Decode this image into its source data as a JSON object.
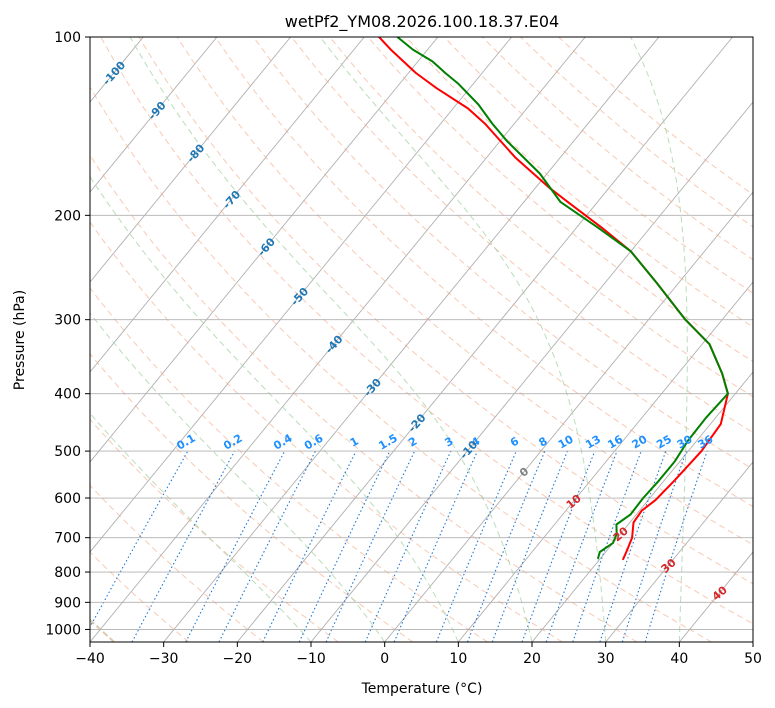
{
  "chart_data": {
    "type": "skew-t",
    "title": "wetPf2_YM08.2026.100.18.37.E04",
    "xlabel": "Temperature (°C)",
    "ylabel": "Pressure (hPa)",
    "xlim": [
      -40,
      50
    ],
    "ylim": [
      1050,
      100
    ],
    "x_ticks": [
      -40,
      -30,
      -20,
      -10,
      0,
      10,
      20,
      30,
      40,
      50
    ],
    "x_tick_labels": [
      "−40",
      "−30",
      "−20",
      "−10",
      "0",
      "10",
      "20",
      "30",
      "40",
      "50"
    ],
    "y_ticks": [
      100,
      200,
      300,
      400,
      500,
      600,
      700,
      800,
      900,
      1000
    ],
    "y_tick_labels": [
      "100",
      "200",
      "300",
      "400",
      "500",
      "600",
      "700",
      "800",
      "900",
      "1000"
    ],
    "grid": true,
    "series": [
      {
        "name": "temperature",
        "color": "#ff0000",
        "points": [
          [
            763,
            23.2
          ],
          [
            740,
            22.8
          ],
          [
            700,
            22.0
          ],
          [
            660,
            20.5
          ],
          [
            630,
            20.3
          ],
          [
            605,
            21.0
          ],
          [
            560,
            21.4
          ],
          [
            500,
            21.8
          ],
          [
            450,
            21.4
          ],
          [
            400,
            19.0
          ],
          [
            370,
            16.0
          ],
          [
            330,
            11.0
          ],
          [
            300,
            5.0
          ],
          [
            260,
            -3.0
          ],
          [
            230,
            -10.0
          ],
          [
            210,
            -16.5
          ],
          [
            190,
            -24.0
          ],
          [
            180,
            -28.0
          ],
          [
            160,
            -36.0
          ],
          [
            140,
            -44.0
          ],
          [
            132,
            -48.0
          ],
          [
            122,
            -54.5
          ],
          [
            115,
            -59.0
          ],
          [
            105,
            -65.0
          ],
          [
            100,
            -68.0
          ]
        ]
      },
      {
        "name": "dewpoint",
        "color": "#008000",
        "points": [
          [
            760,
            19.7
          ],
          [
            740,
            19.2
          ],
          [
            715,
            20.0
          ],
          [
            690,
            19.5
          ],
          [
            665,
            18.4
          ],
          [
            640,
            19.2
          ],
          [
            600,
            19.1
          ],
          [
            560,
            19.3
          ],
          [
            520,
            19.3
          ],
          [
            480,
            18.8
          ],
          [
            440,
            18.7
          ],
          [
            400,
            19.0
          ],
          [
            370,
            16.0
          ],
          [
            330,
            11.0
          ],
          [
            300,
            5.0
          ],
          [
            260,
            -3.0
          ],
          [
            230,
            -10.0
          ],
          [
            210,
            -17.0
          ],
          [
            190,
            -25.0
          ],
          [
            170,
            -31.0
          ],
          [
            150,
            -39.0
          ],
          [
            140,
            -43.0
          ],
          [
            130,
            -47.0
          ],
          [
            120,
            -52.0
          ],
          [
            115,
            -55.0
          ],
          [
            110,
            -58.0
          ],
          [
            105,
            -62.0
          ],
          [
            100,
            -65.5
          ]
        ]
      }
    ],
    "dry_adiabat_temps_c": [
      -30,
      -20,
      -10,
      0,
      10,
      20,
      30,
      40,
      50,
      60,
      70,
      80,
      90,
      100,
      110,
      120,
      130,
      140,
      150,
      160,
      170
    ],
    "moist_adiabat_temps_c": [
      -10,
      0,
      10,
      20,
      30,
      40
    ],
    "mixing_ratio_labels": [
      "0.1",
      "0.2",
      "0.4",
      "0.6",
      "1",
      "1.5",
      "2",
      "3",
      "4",
      "6",
      "8",
      "10",
      "13",
      "16",
      "20",
      "25",
      "30",
      "36"
    ],
    "mixing_ratio_values": [
      0.1,
      0.2,
      0.4,
      0.6,
      1,
      1.5,
      2,
      3,
      4,
      6,
      8,
      10,
      13,
      16,
      20,
      25,
      30,
      36
    ],
    "isotherm_labels": [
      {
        "text": "-100",
        "value": -100,
        "p": 115
      },
      {
        "text": "-90",
        "value": -90,
        "p": 133
      },
      {
        "text": "-80",
        "value": -80,
        "p": 157
      },
      {
        "text": "-70",
        "value": -70,
        "p": 188
      },
      {
        "text": "-60",
        "value": -60,
        "p": 226
      },
      {
        "text": "-50",
        "value": -50,
        "p": 274
      },
      {
        "text": "-40",
        "value": -40,
        "p": 330
      },
      {
        "text": "-30",
        "value": -30,
        "p": 390
      },
      {
        "text": "-20",
        "value": -20,
        "p": 448
      },
      {
        "text": "-10",
        "value": -10,
        "p": 497
      }
    ],
    "adiabat_labels": [
      {
        "text": "0",
        "value": 0,
        "color": "#7f7f7f",
        "p": 542
      },
      {
        "text": "10",
        "value": 10,
        "color": "#d62728",
        "p": 608
      },
      {
        "text": "20",
        "value": 20,
        "color": "#d62728",
        "p": 690
      },
      {
        "text": "30",
        "value": 30,
        "color": "#d62728",
        "p": 780
      },
      {
        "text": "40",
        "value": 40,
        "color": "#d62728",
        "p": 868
      }
    ]
  }
}
